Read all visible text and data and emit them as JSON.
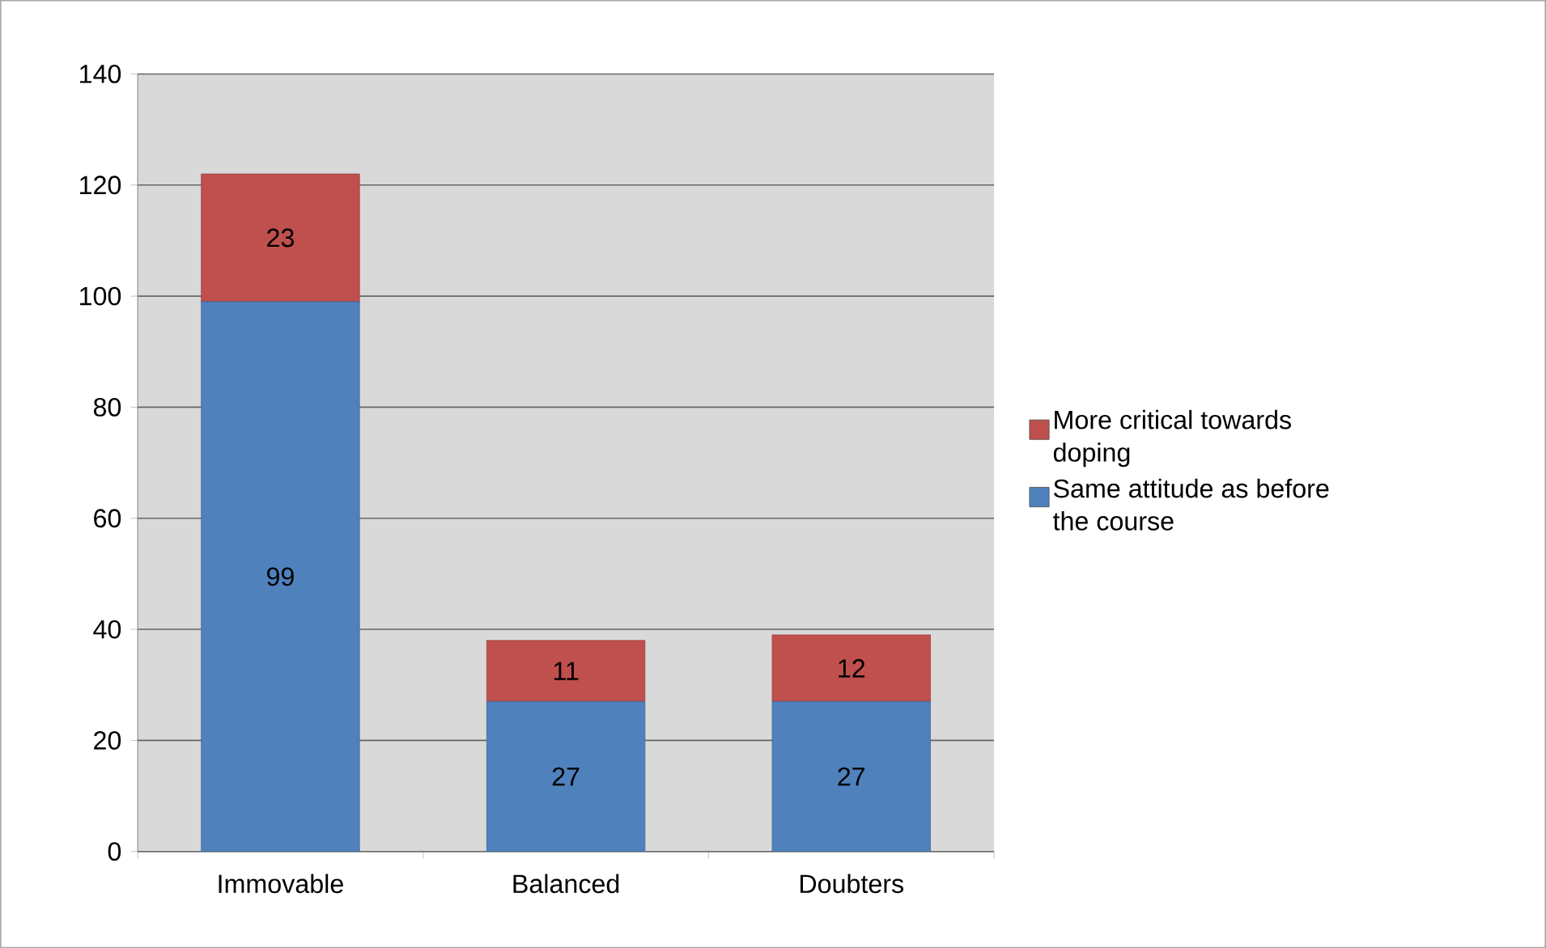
{
  "chart_data": {
    "type": "bar",
    "stacked": true,
    "categories": [
      "Immovable",
      "Balanced",
      "Doubters"
    ],
    "series": [
      {
        "name": "Same attitude as before the course",
        "color": "#4f81bd",
        "values": [
          99,
          27,
          27
        ]
      },
      {
        "name": "More critical towards doping",
        "color": "#c0504d",
        "values": [
          23,
          11,
          12
        ]
      }
    ],
    "ylim": [
      0,
      140
    ],
    "yticks": [
      0,
      20,
      40,
      60,
      80,
      100,
      120,
      140
    ],
    "grid": "y",
    "legend": "right",
    "data_labels": true
  }
}
